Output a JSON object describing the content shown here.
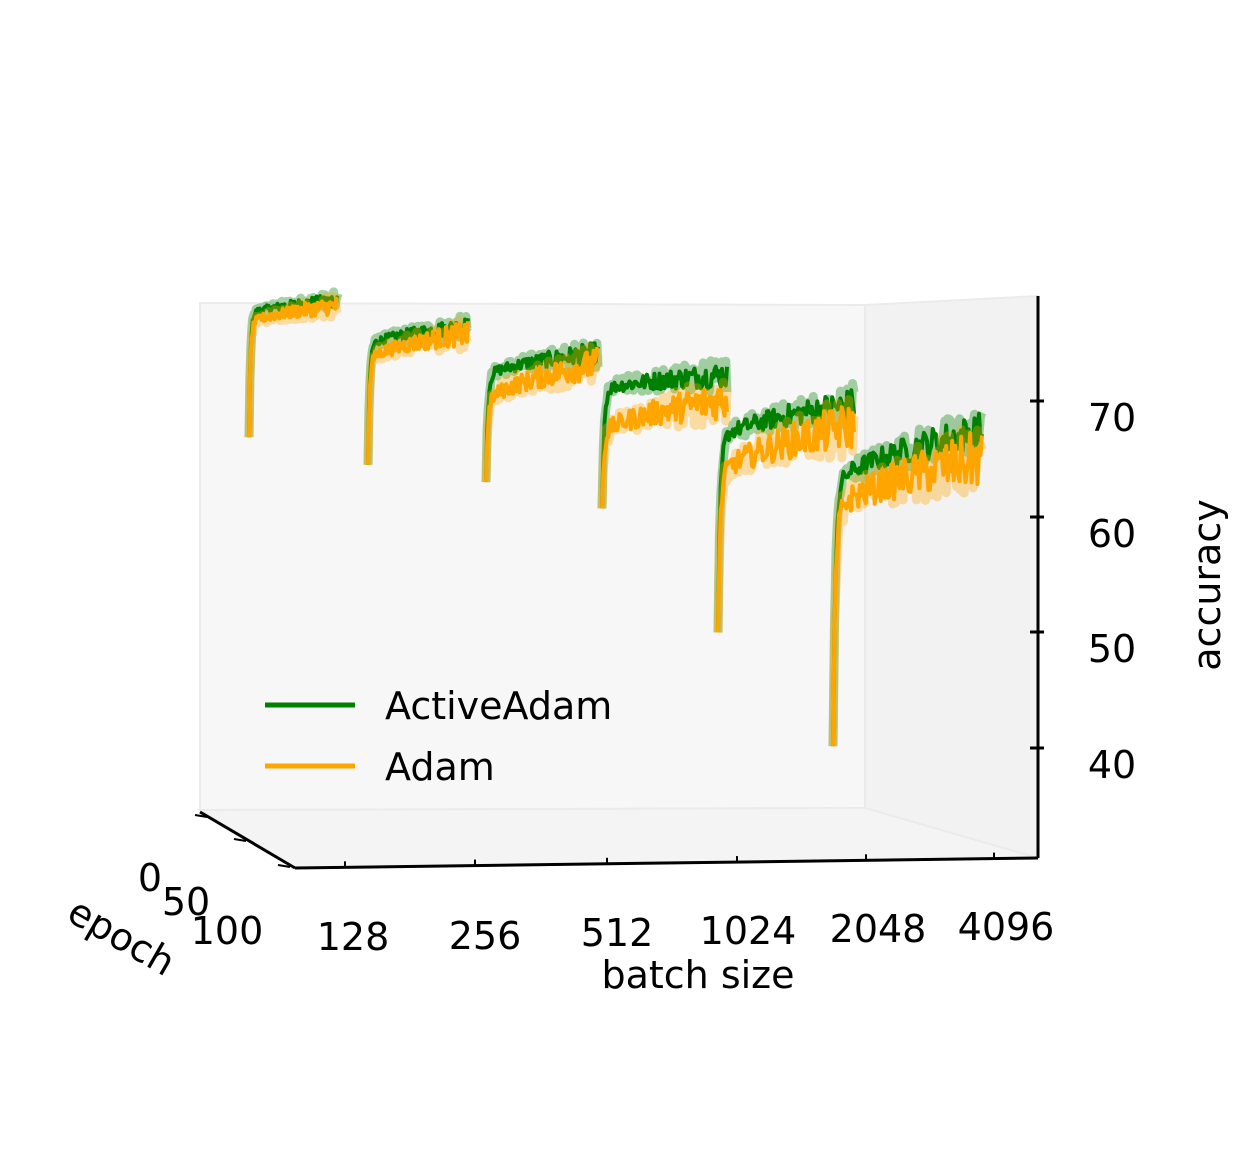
{
  "chart_data": {
    "type": "line",
    "projection": "3d",
    "xlabel": "batch size",
    "ylabel": "epoch",
    "zlabel": "accuracy",
    "x_ticks": [
      "128",
      "256",
      "512",
      "1024",
      "2048",
      "4096"
    ],
    "y_ticks": [
      "0",
      "50",
      "100"
    ],
    "z_ticks": [
      "40",
      "50",
      "60",
      "70"
    ],
    "epochs": 100,
    "legend_position": "lower-left",
    "legend_entries": [
      {
        "label": "ActiveAdam",
        "color": "#008000"
      },
      {
        "label": "Adam",
        "color": "#ffa500"
      }
    ],
    "series": [
      {
        "name": "ActiveAdam",
        "color": "#008000",
        "panels": [
          {
            "batch_size": "128",
            "start": 58.5,
            "plateau_low": 75.7,
            "final": 77.8
          },
          {
            "batch_size": "256",
            "start": 57.5,
            "plateau_low": 73.5,
            "final": 76.3
          },
          {
            "batch_size": "512",
            "start": 57.5,
            "plateau_low": 71.0,
            "final": 74.2
          },
          {
            "batch_size": "1024",
            "start": 57.0,
            "plateau_low": 71.5,
            "final": 73.5
          },
          {
            "batch_size": "2048",
            "start": 45.0,
            "plateau_low": 67.5,
            "final": 72.0
          },
          {
            "batch_size": "4096",
            "start": 36.0,
            "plateau_low": 64.5,
            "final": 71.0
          }
        ]
      },
      {
        "name": "Adam",
        "color": "#ffa500",
        "panels": [
          {
            "batch_size": "128",
            "start": 58.5,
            "plateau_low": 74.3,
            "final": 77.0
          },
          {
            "batch_size": "256",
            "start": 57.5,
            "plateau_low": 71.5,
            "final": 75.3
          },
          {
            "batch_size": "512",
            "start": 57.5,
            "plateau_low": 67.5,
            "final": 72.8
          },
          {
            "batch_size": "1024",
            "start": 57.0,
            "plateau_low": 66.0,
            "final": 70.5
          },
          {
            "batch_size": "2048",
            "start": 45.0,
            "plateau_low": 63.0,
            "final": 69.5
          },
          {
            "batch_size": "4096",
            "start": 36.0,
            "plateau_low": 61.5,
            "final": 68.0
          }
        ]
      }
    ]
  }
}
